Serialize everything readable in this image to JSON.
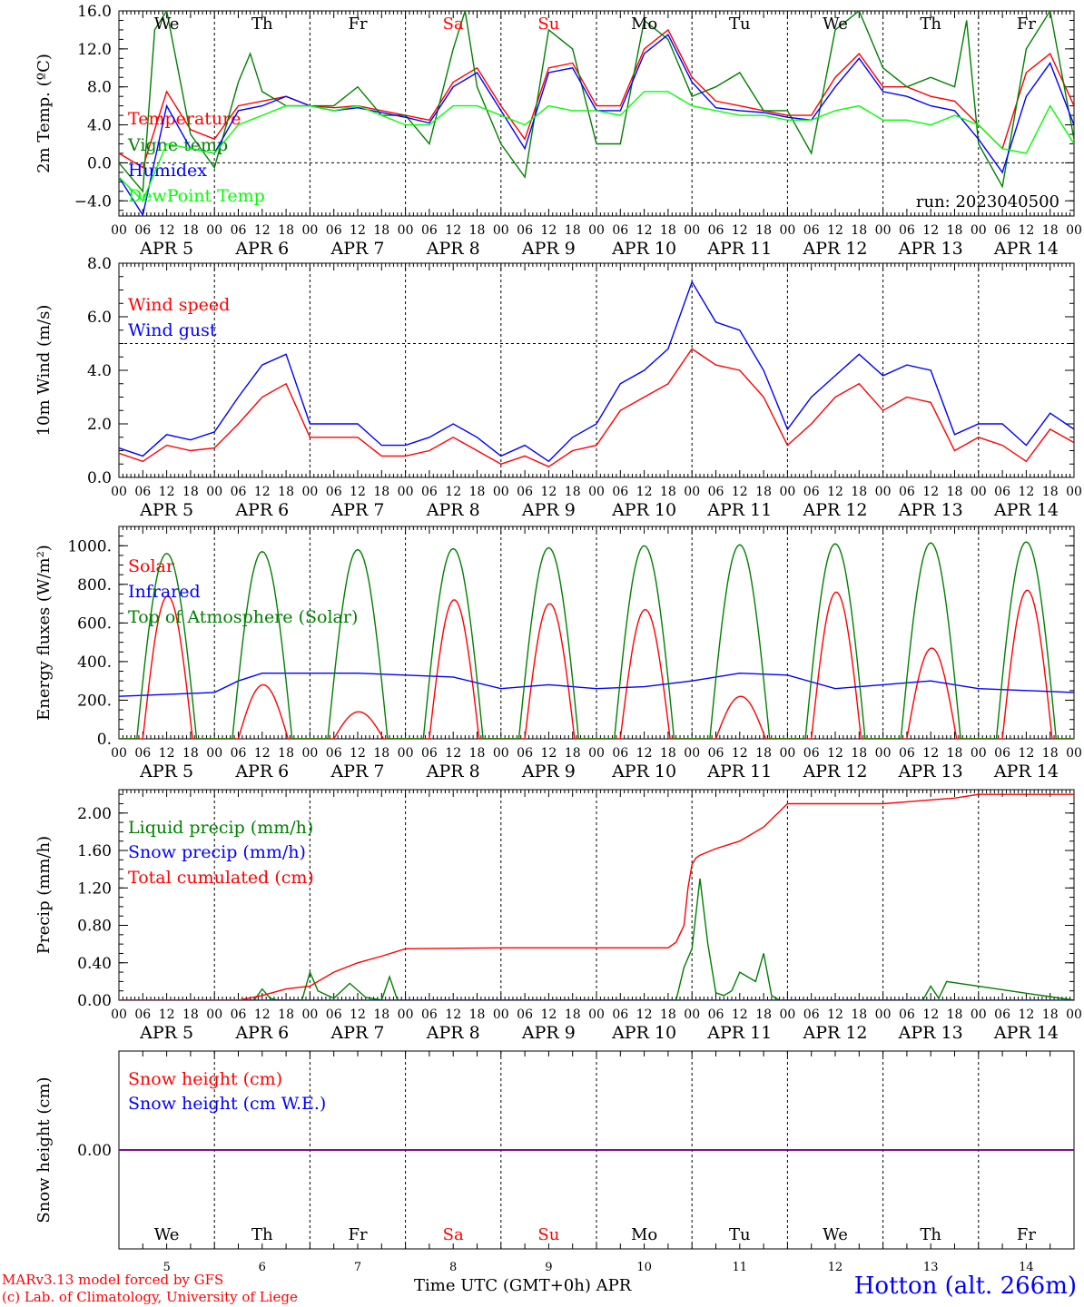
{
  "footer": {
    "credit_line1": "MARv3.13 model forced by GFS",
    "credit_line2": "(c) Lab. of Climatology, University of Liege",
    "x_title": "Time UTC (GMT+0h) APR",
    "station": "Hotton (alt. 266m)"
  },
  "colors": {
    "red": "#ff0000",
    "blue": "#0000ff",
    "green": "#008000",
    "light_green": "#00ff00",
    "purple": "#800080",
    "weekend": "#ff0000"
  },
  "time_axis": {
    "hour_ticks": [
      "00",
      "06",
      "12",
      "18"
    ],
    "final_tick": "00",
    "date_labels": [
      "APR  5",
      "APR  6",
      "APR  7",
      "APR  8",
      "APR  9",
      "APR 10",
      "APR 11",
      "APR 12",
      "APR 13",
      "APR 14"
    ],
    "day_names": [
      "We",
      "Th",
      "Fr",
      "Sa",
      "Su",
      "Mo",
      "Tu",
      "We",
      "Th",
      "Fr"
    ],
    "weekend_days": [
      3,
      4
    ],
    "day_numbers": [
      "5",
      "6",
      "7",
      "8",
      "9",
      "10",
      "11",
      "12",
      "13",
      "14"
    ],
    "x_unit": "hours since APR 5 00 UTC",
    "x_range": [
      0,
      240
    ]
  },
  "chart_data": [
    {
      "type": "line",
      "ylabel": "2m Temp. (ºC)",
      "ylim": [
        -5.6,
        16.0
      ],
      "yticks": [
        "16.0",
        "12.0",
        "8.0",
        "4.0",
        "0.0",
        "−4.0"
      ],
      "ytick_values": [
        16,
        12,
        8,
        4,
        0,
        -4
      ],
      "reference_line": 0,
      "annotation": "run: 2023040500",
      "series": [
        {
          "name": "Temperature",
          "color": "#ff0000",
          "x": [
            0,
            6,
            12,
            18,
            24,
            30,
            36,
            42,
            48,
            54,
            60,
            66,
            72,
            78,
            84,
            90,
            96,
            102,
            108,
            114,
            120,
            126,
            132,
            138,
            144,
            150,
            156,
            162,
            168,
            174,
            180,
            186,
            192,
            198,
            204,
            210,
            216,
            222,
            228,
            234,
            240
          ],
          "y": [
            1.0,
            -0.5,
            7.5,
            3.5,
            2.5,
            6.0,
            6.5,
            7.0,
            6.0,
            5.8,
            6.0,
            5.5,
            5.0,
            4.5,
            8.5,
            10.0,
            6.0,
            2.5,
            10.0,
            10.5,
            6.0,
            6.0,
            12.0,
            14.0,
            9.0,
            6.5,
            6.0,
            5.5,
            5.0,
            5.0,
            9.0,
            11.5,
            8.0,
            8.0,
            7.0,
            6.5,
            4.0,
            1.5,
            9.5,
            11.5,
            6.0
          ]
        },
        {
          "name": "Vigne temp",
          "color": "#008000",
          "x": [
            0,
            6,
            9,
            12,
            18,
            24,
            30,
            33,
            36,
            42,
            48,
            54,
            60,
            66,
            72,
            78,
            84,
            87,
            90,
            96,
            102,
            108,
            114,
            120,
            126,
            132,
            138,
            144,
            150,
            156,
            162,
            168,
            174,
            180,
            186,
            192,
            198,
            204,
            210,
            213,
            216,
            222,
            228,
            234,
            240
          ],
          "y": [
            0.0,
            -3.0,
            14.0,
            16.0,
            3.0,
            -0.5,
            8.5,
            11.5,
            7.5,
            6.0,
            6.0,
            6.0,
            8.0,
            5.0,
            5.0,
            2.0,
            12.0,
            16.0,
            8.0,
            2.0,
            -1.5,
            14.0,
            12.0,
            2.0,
            2.0,
            15.0,
            13.0,
            7.0,
            8.0,
            9.5,
            5.5,
            5.5,
            1.0,
            14.0,
            16.0,
            10.0,
            8.0,
            9.0,
            8.0,
            15.0,
            2.0,
            -2.5,
            12.0,
            16.0,
            2.5
          ]
        },
        {
          "name": "Humidex",
          "color": "#0000ff",
          "x": [
            0,
            6,
            12,
            18,
            24,
            30,
            36,
            42,
            48,
            54,
            60,
            66,
            72,
            78,
            84,
            90,
            96,
            102,
            108,
            114,
            120,
            126,
            132,
            138,
            144,
            150,
            156,
            162,
            168,
            174,
            180,
            186,
            192,
            198,
            204,
            210,
            216,
            222,
            228,
            234,
            240
          ],
          "y": [
            -1.5,
            -5.5,
            6.0,
            1.5,
            1.0,
            5.5,
            6.0,
            7.0,
            6.0,
            5.5,
            5.8,
            5.3,
            4.8,
            4.2,
            8.0,
            9.5,
            5.5,
            1.5,
            9.5,
            10.0,
            5.5,
            5.5,
            11.5,
            13.5,
            8.5,
            5.8,
            5.5,
            5.3,
            4.8,
            4.5,
            8.0,
            11.0,
            7.5,
            7.0,
            6.0,
            5.5,
            2.5,
            -1.0,
            7.0,
            10.5,
            4.0
          ]
        },
        {
          "name": "DewPoint Temp",
          "color": "#00ff00",
          "x": [
            0,
            6,
            12,
            18,
            24,
            30,
            36,
            42,
            48,
            54,
            60,
            66,
            72,
            78,
            84,
            90,
            96,
            102,
            108,
            114,
            120,
            126,
            132,
            138,
            144,
            150,
            156,
            162,
            168,
            174,
            180,
            186,
            192,
            198,
            204,
            210,
            216,
            222,
            228,
            234,
            240
          ],
          "y": [
            -1.5,
            -4.0,
            2.0,
            1.5,
            1.0,
            4.0,
            5.0,
            6.0,
            6.0,
            5.5,
            6.0,
            5.0,
            4.0,
            4.0,
            6.0,
            6.0,
            5.0,
            4.0,
            6.0,
            5.5,
            5.5,
            5.0,
            7.5,
            7.5,
            6.0,
            5.5,
            5.0,
            5.0,
            4.5,
            4.5,
            5.5,
            6.0,
            4.5,
            4.5,
            4.0,
            5.0,
            4.0,
            1.5,
            1.0,
            6.0,
            2.0
          ]
        }
      ]
    },
    {
      "type": "line",
      "ylabel": "10m Wind (m/s)",
      "ylim": [
        0,
        8.0
      ],
      "yticks": [
        "8.0",
        "6.0",
        "4.0",
        "2.0",
        "0.0"
      ],
      "ytick_values": [
        8,
        6,
        4,
        2,
        0
      ],
      "reference_line": 5,
      "series": [
        {
          "name": "Wind speed",
          "color": "#ff0000",
          "x": [
            0,
            6,
            12,
            18,
            24,
            30,
            36,
            42,
            48,
            54,
            60,
            66,
            72,
            78,
            84,
            90,
            96,
            102,
            108,
            114,
            120,
            126,
            132,
            138,
            144,
            150,
            156,
            162,
            168,
            174,
            180,
            186,
            192,
            198,
            204,
            210,
            216,
            222,
            228,
            234,
            240
          ],
          "y": [
            0.9,
            0.6,
            1.2,
            1.0,
            1.1,
            2.0,
            3.0,
            3.5,
            1.5,
            1.5,
            1.5,
            0.8,
            0.8,
            1.0,
            1.5,
            1.0,
            0.5,
            0.8,
            0.4,
            1.0,
            1.2,
            2.5,
            3.0,
            3.5,
            4.8,
            4.2,
            4.0,
            3.0,
            1.2,
            2.0,
            3.0,
            3.5,
            2.5,
            3.0,
            2.8,
            1.0,
            1.5,
            1.2,
            0.6,
            1.8,
            1.3
          ]
        },
        {
          "name": "Wind gust",
          "color": "#0000ff",
          "x": [
            0,
            6,
            12,
            18,
            24,
            30,
            36,
            42,
            48,
            54,
            60,
            66,
            72,
            78,
            84,
            90,
            96,
            102,
            108,
            114,
            120,
            126,
            132,
            138,
            144,
            150,
            156,
            162,
            168,
            174,
            180,
            186,
            192,
            198,
            204,
            210,
            216,
            222,
            228,
            234,
            240
          ],
          "y": [
            1.1,
            0.8,
            1.6,
            1.4,
            1.7,
            3.0,
            4.2,
            4.6,
            2.0,
            2.0,
            2.0,
            1.2,
            1.2,
            1.5,
            2.0,
            1.5,
            0.8,
            1.2,
            0.6,
            1.5,
            2.0,
            3.5,
            4.0,
            4.8,
            7.3,
            5.8,
            5.5,
            4.0,
            1.8,
            3.0,
            3.8,
            4.6,
            3.8,
            4.2,
            4.0,
            1.6,
            2.0,
            2.0,
            1.2,
            2.4,
            1.8
          ]
        }
      ]
    },
    {
      "type": "line",
      "ylabel": "Energy fluxes (W/m²)",
      "ylim": [
        0,
        1100
      ],
      "yticks": [
        "1000.",
        "800.",
        "600.",
        "400.",
        "200.",
        "0."
      ],
      "ytick_values": [
        1000,
        800,
        600,
        400,
        200,
        0
      ],
      "series": [
        {
          "name": "Solar",
          "color": "#ff0000",
          "daily_peak": [
            740,
            280,
            140,
            720,
            700,
            670,
            220,
            760,
            470,
            770
          ],
          "day_hours": [
            6,
            18.5
          ]
        },
        {
          "name": "Infrared",
          "color": "#0000ff",
          "x": [
            0,
            12,
            24,
            30,
            36,
            48,
            60,
            72,
            84,
            96,
            108,
            120,
            132,
            144,
            156,
            168,
            180,
            192,
            204,
            216,
            228,
            240
          ],
          "y": [
            220,
            230,
            240,
            300,
            340,
            340,
            340,
            330,
            320,
            260,
            280,
            260,
            270,
            300,
            340,
            330,
            260,
            280,
            300,
            260,
            250,
            240
          ]
        },
        {
          "name": "Top of Atmosphere (Solar)",
          "color": "#008000",
          "daily_peak": [
            960,
            970,
            980,
            985,
            990,
            1000,
            1005,
            1010,
            1015,
            1020
          ],
          "day_hours": [
            4.5,
            19.5
          ]
        }
      ]
    },
    {
      "type": "line",
      "ylabel": "Precip (mm/h)",
      "ylim": [
        0,
        2.25
      ],
      "yticks": [
        "2.00",
        "1.60",
        "1.20",
        "0.80",
        "0.40",
        "0.00"
      ],
      "ytick_values": [
        2.0,
        1.6,
        1.2,
        0.8,
        0.4,
        0
      ],
      "series": [
        {
          "name": "Liquid precip (mm/h)",
          "color": "#008000",
          "x": [
            0,
            34,
            36,
            38,
            40,
            46,
            48,
            50,
            54,
            58,
            62,
            66,
            68,
            70,
            72,
            120,
            140,
            142,
            144,
            146,
            148,
            150,
            152,
            154,
            156,
            160,
            162,
            164,
            166,
            170,
            202,
            204,
            206,
            208,
            240
          ],
          "y": [
            0,
            0,
            0.12,
            0.02,
            0,
            0,
            0.3,
            0.1,
            0.02,
            0.18,
            0.03,
            0,
            0.25,
            0,
            0,
            0,
            0,
            0.35,
            0.55,
            1.3,
            0.6,
            0.08,
            0.05,
            0.1,
            0.3,
            0.2,
            0.5,
            0.05,
            0,
            0,
            0,
            0.15,
            0.02,
            0.2,
            0
          ]
        },
        {
          "name": "Snow precip (mm/h)",
          "color": "#0000ff",
          "x": [
            0,
            240
          ],
          "y": [
            0,
            0
          ]
        },
        {
          "name": "Total cumulated (cm)",
          "color": "#ff0000",
          "x": [
            0,
            30,
            36,
            42,
            48,
            54,
            60,
            66,
            72,
            96,
            120,
            138,
            140,
            142,
            143,
            144,
            145,
            146,
            150,
            156,
            162,
            168,
            180,
            192,
            198,
            204,
            210,
            216,
            240
          ],
          "y": [
            0,
            0,
            0.05,
            0.12,
            0.15,
            0.3,
            0.4,
            0.47,
            0.55,
            0.56,
            0.56,
            0.56,
            0.62,
            0.8,
            1.2,
            1.45,
            1.52,
            1.55,
            1.62,
            1.7,
            1.85,
            2.1,
            2.1,
            2.1,
            2.12,
            2.14,
            2.16,
            2.2,
            2.2
          ]
        }
      ]
    },
    {
      "type": "line",
      "ylabel": "Snow height (cm)",
      "ylim": [
        -1,
        1
      ],
      "yticks": [
        "0.00"
      ],
      "ytick_values": [
        0
      ],
      "series": [
        {
          "name": "Snow height (cm)",
          "color": "#ff0000",
          "x": [
            0,
            240
          ],
          "y": [
            0,
            0
          ]
        },
        {
          "name": "Snow height (cm W.E.)",
          "color": "#0000ff",
          "x": [
            0,
            240
          ],
          "y": [
            0,
            0
          ]
        }
      ]
    }
  ]
}
